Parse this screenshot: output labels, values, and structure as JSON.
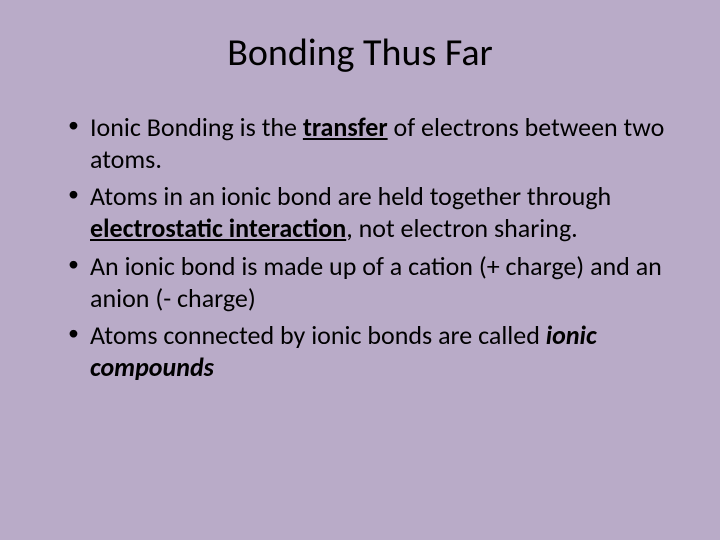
{
  "slide": {
    "background_color": "#b9abc8",
    "text_color": "#000000",
    "title": "Bonding Thus Far",
    "title_fontsize": 38,
    "body_fontsize": 26,
    "bullets": [
      {
        "pre": "Ionic Bonding is the ",
        "emph": "transfer",
        "emph_style": "bold-ul",
        "post": " of electrons between two atoms."
      },
      {
        "pre": "Atoms in an ionic bond are held together through ",
        "emph": "electrostatic interaction",
        "emph_style": "bold-ul",
        "post": ", not electron sharing."
      },
      {
        "pre": "An ionic bond is made up of a cation (+ charge) and an anion (- charge)",
        "emph": "",
        "emph_style": "",
        "post": ""
      },
      {
        "pre": "Atoms connected by ionic bonds are called ",
        "emph": "ionic compounds",
        "emph_style": "bold-it",
        "post": ""
      }
    ]
  }
}
